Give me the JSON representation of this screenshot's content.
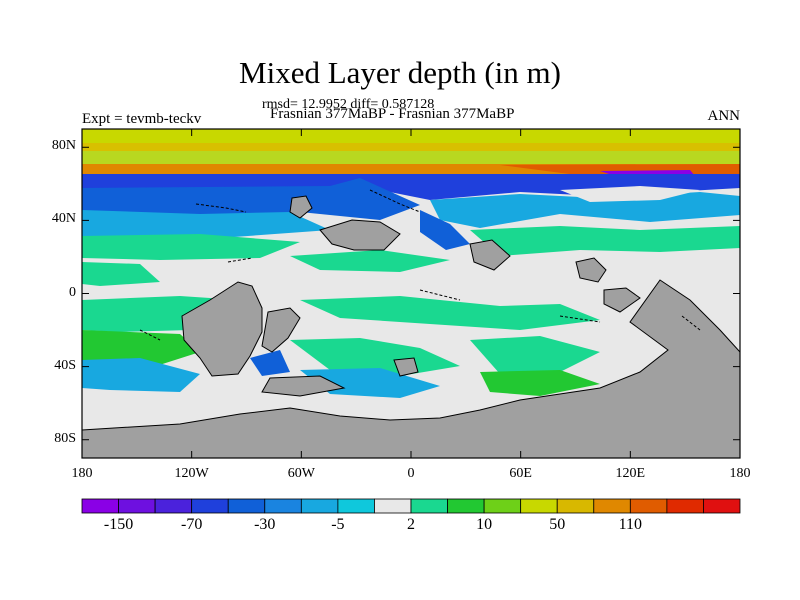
{
  "title": "Mixed Layer depth (in m)",
  "stats": "rmsd= 12.9952 diff= 0.587128",
  "experiment_label": "Expt = tevmb-teckv",
  "comparison_label": "Frasnian 377MaBP - Frasnian 377MaBP",
  "period_label": "ANN",
  "y_ticks": [
    {
      "label": "80N",
      "lat": 80
    },
    {
      "label": "40N",
      "lat": 40
    },
    {
      "label": "0",
      "lat": 0
    },
    {
      "label": "40S",
      "lat": -40
    },
    {
      "label": "80S",
      "lat": -80
    }
  ],
  "x_ticks": [
    {
      "label": "180",
      "lon": -180
    },
    {
      "label": "120W",
      "lon": -120
    },
    {
      "label": "60W",
      "lon": -60
    },
    {
      "label": "0",
      "lon": 0
    },
    {
      "label": "60E",
      "lon": 60
    },
    {
      "label": "120E",
      "lon": 120
    },
    {
      "label": "180",
      "lon": 180
    }
  ],
  "colorbar": {
    "colors": [
      "#8a00e6",
      "#6e10e0",
      "#4b22dc",
      "#1f40dc",
      "#1060d8",
      "#1a84e0",
      "#18a8e0",
      "#0fc8dc",
      "#e8e8e8",
      "#1ad890",
      "#22c832",
      "#6ed018",
      "#c8d800",
      "#d8b800",
      "#e08800",
      "#e05c00",
      "#e02a00",
      "#e01010"
    ],
    "tick_labels": [
      "-150",
      "-70",
      "-30",
      "-5",
      "2",
      "10",
      "50",
      "110"
    ],
    "tick_edges": [
      1,
      3,
      5,
      7,
      9,
      11,
      13,
      15
    ]
  },
  "map": {
    "lon_range": [
      -180,
      180
    ],
    "lat_range": [
      -90,
      90
    ],
    "land_color": "#a0a0a0",
    "ocean_base_color": "#e8e8e8"
  }
}
